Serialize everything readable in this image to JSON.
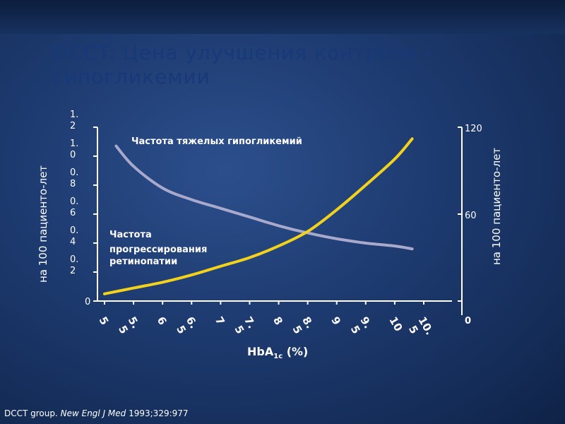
{
  "slide": {
    "title": "DCCT: Цена улучшения контроля - гипогликемии",
    "citation_prefix": "DCCT group. ",
    "citation_journal": "New Engl J Med",
    "citation_suffix": " 1993;329:977"
  },
  "chart_data": {
    "type": "line",
    "title": "",
    "xlabel_main": "HbA",
    "xlabel_sub": "1c",
    "xlabel_suffix": " (%)",
    "x_categories": [
      "5",
      "5.5",
      "6",
      "6.5",
      "7",
      "7.5",
      "8",
      "8.5",
      "9",
      "9.5",
      "10",
      "10.5"
    ],
    "y_left": {
      "label": "на 100 пациенто-лет",
      "ticks": [
        "0",
        "0.2",
        "0.4",
        "0.6",
        "0.8",
        "1.0",
        "1.2"
      ],
      "range": [
        0,
        1.2
      ]
    },
    "y_right": {
      "label": "на 100 пациенто-лет",
      "ticks": [
        "0",
        "60",
        "120"
      ],
      "range": [
        0,
        120
      ]
    },
    "series": [
      {
        "name": "Частота тяжелых гипогликемий",
        "color": "#a9a9cc",
        "axis": "right",
        "x": [
          5.2,
          5.5,
          6.0,
          6.5,
          7.0,
          7.5,
          8.0,
          8.5,
          9.0,
          9.5,
          10.0,
          10.3
        ],
        "y": [
          107,
          93,
          78,
          70,
          64,
          58,
          52,
          47,
          43,
          40,
          38,
          36
        ]
      },
      {
        "name": "Частота прогрессирования ретинопатии",
        "color": "#f2d21a",
        "axis": "left",
        "x": [
          5.0,
          5.5,
          6.0,
          6.5,
          7.0,
          7.5,
          8.0,
          8.5,
          9.0,
          9.5,
          10.0,
          10.3
        ],
        "y": [
          0.05,
          0.09,
          0.13,
          0.18,
          0.24,
          0.3,
          0.38,
          0.48,
          0.63,
          0.8,
          0.98,
          1.12
        ]
      }
    ],
    "labels": {
      "hypo": "Частота тяжелых гипогликемий",
      "retino_1": "Частота",
      "retino_2": "прогрессирования",
      "retino_3": "ретинопатии"
    }
  }
}
